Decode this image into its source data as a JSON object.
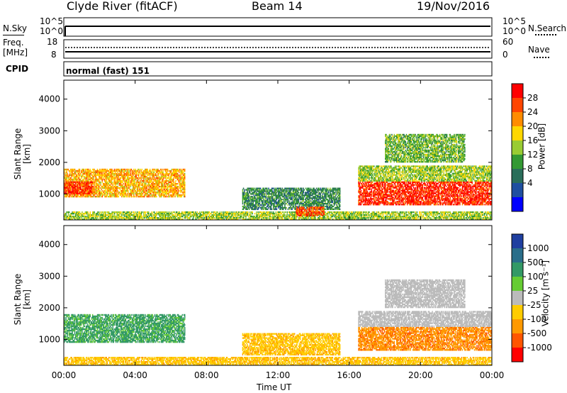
{
  "header": {
    "station": "Clyde River (fitACF)",
    "beam": "Beam 14",
    "date": "19/Nov/2016"
  },
  "strip": {
    "nsky_label": "N.Sky",
    "nsearch_label": "N.Search",
    "nsky_ticks": [
      "10^5",
      "10^0"
    ],
    "nsearch_ticks": [
      "10^5",
      "10^0"
    ],
    "freq_label_top": "Freq.",
    "freq_label_bottom": "[MHz]",
    "freq_ticks": [
      "18",
      "8"
    ],
    "nave_label": "Nave",
    "nave_ticks": [
      "60",
      "0"
    ],
    "cpid_label": "CPID",
    "cpid_value": "normal (fast) 151"
  },
  "power_panel": {
    "ylabel": "Slant Range [km]",
    "cbar_label": "Power [dB]",
    "cbar_ticks": [
      "28",
      "24",
      "20",
      "16",
      "12",
      "8",
      "4"
    ],
    "cbar_colors": [
      "#ff0000",
      "#ff4500",
      "#ff8c00",
      "#ffd700",
      "#99cc33",
      "#339933",
      "#2a6e5a",
      "#1f4fa0",
      "#0000ff"
    ]
  },
  "velocity_panel": {
    "ylabel": "Slant Range [km]",
    "cbar_label": "Velocity [m s⁻¹]",
    "cbar_ticks": [
      "1000",
      "500",
      "100",
      "25",
      "-25",
      "-100",
      "-500",
      "-1000"
    ],
    "cbar_colors": [
      "#1f3fa0",
      "#2a6e8a",
      "#339966",
      "#66cc33",
      "#bbbbbb",
      "#ffcc00",
      "#ff9900",
      "#ff5500",
      "#ff0000"
    ]
  },
  "xaxis": {
    "label": "Time UT",
    "ticks": [
      "00:00",
      "04:00",
      "08:00",
      "12:00",
      "16:00",
      "20:00",
      "00:00"
    ]
  },
  "yaxis": {
    "ticks": [
      "4000",
      "3000",
      "2000",
      "1000"
    ]
  },
  "chart_data": [
    {
      "type": "heatmap",
      "title": "Clyde River (fitACF) Beam 14 19/Nov/2016",
      "quantity": "Power [dB]",
      "xlabel": "Time UT",
      "ylabel": "Slant Range [km]",
      "xlim": [
        0,
        24
      ],
      "ylim": [
        180,
        4600
      ],
      "color_scale": [
        0,
        32
      ],
      "regions": [
        {
          "t_start": 0.0,
          "t_end": 6.8,
          "range_start": 900,
          "range_end": 1800,
          "power_dB": 20
        },
        {
          "t_start": 0.0,
          "t_end": 1.6,
          "range_start": 1000,
          "range_end": 1400,
          "power_dB": 28
        },
        {
          "t_start": 0.0,
          "t_end": 24.0,
          "range_start": 180,
          "range_end": 450,
          "power_dB": 14
        },
        {
          "t_start": 10.0,
          "t_end": 15.5,
          "range_start": 500,
          "range_end": 1200,
          "power_dB": 8
        },
        {
          "t_start": 13.0,
          "t_end": 14.6,
          "range_start": 300,
          "range_end": 600,
          "power_dB": 26
        },
        {
          "t_start": 16.5,
          "t_end": 24.0,
          "range_start": 650,
          "range_end": 1400,
          "power_dB": 28
        },
        {
          "t_start": 16.5,
          "t_end": 24.0,
          "range_start": 1400,
          "range_end": 1900,
          "power_dB": 14
        },
        {
          "t_start": 18.0,
          "t_end": 22.5,
          "range_start": 2000,
          "range_end": 2900,
          "power_dB": 12
        }
      ]
    },
    {
      "type": "heatmap",
      "title": "Clyde River (fitACF) Beam 14 19/Nov/2016",
      "quantity": "Velocity [m s^-1]",
      "xlabel": "Time UT",
      "ylabel": "Slant Range [km]",
      "xlim": [
        0,
        24
      ],
      "ylim": [
        180,
        4600
      ],
      "color_scale": [
        -1000,
        1000
      ],
      "regions": [
        {
          "t_start": 0.0,
          "t_end": 6.8,
          "range_start": 900,
          "range_end": 1800,
          "velocity": 100
        },
        {
          "t_start": 0.0,
          "t_end": 24.0,
          "range_start": 180,
          "range_end": 450,
          "velocity": -100
        },
        {
          "t_start": 10.0,
          "t_end": 15.5,
          "range_start": 500,
          "range_end": 1200,
          "velocity": -100
        },
        {
          "t_start": 16.5,
          "t_end": 24.0,
          "range_start": 650,
          "range_end": 1400,
          "velocity": -500
        },
        {
          "t_start": 16.5,
          "t_end": 24.0,
          "range_start": 1400,
          "range_end": 1900,
          "velocity": 0
        },
        {
          "t_start": 18.0,
          "t_end": 22.5,
          "range_start": 2000,
          "range_end": 2900,
          "velocity": 0
        }
      ]
    }
  ]
}
